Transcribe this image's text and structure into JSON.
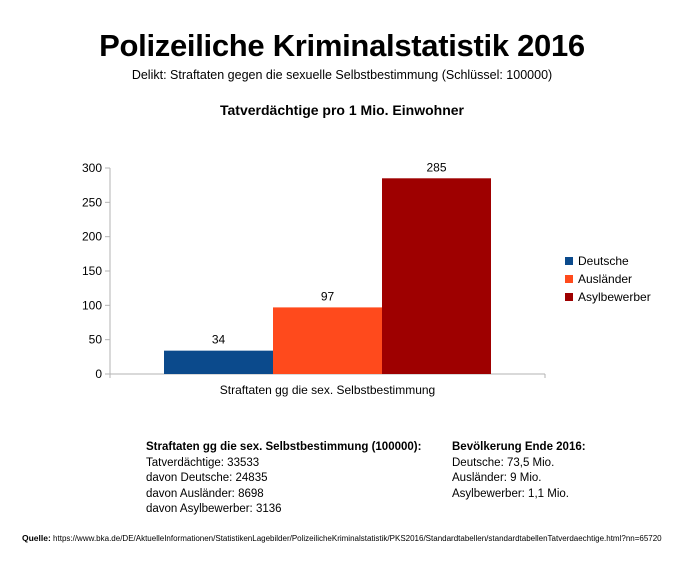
{
  "header": {
    "title": "Polizeiliche Kriminalstatistik 2016",
    "subtitle": "Delikt: Straftaten gegen die sexuelle Selbstbestimmung (Schlüssel: 100000)"
  },
  "chart_data": {
    "type": "bar",
    "title": "Tatverdächtige pro 1 Mio. Einwohner",
    "categories": [
      "Straftaten gg die sex. Selbstbestimmung"
    ],
    "series": [
      {
        "name": "Deutsche",
        "values": [
          34
        ],
        "color": "#0b4a8c"
      },
      {
        "name": "Ausländer",
        "values": [
          97
        ],
        "color": "#ff4a1c"
      },
      {
        "name": "Asylbewerber",
        "values": [
          285
        ],
        "color": "#9e0000"
      }
    ],
    "yticks": [
      0,
      50,
      100,
      150,
      200,
      250,
      300
    ],
    "ylim": [
      0,
      300
    ],
    "xlabel": "",
    "ylabel": "",
    "legend_position": "right"
  },
  "stats_left": {
    "heading": "Straftaten gg die sex. Selbstbestimmung (100000):",
    "lines": [
      "Tatverdächtige: 33533",
      "davon Deutsche: 24835",
      "davon Ausländer: 8698",
      "davon Asylbewerber: 3136"
    ]
  },
  "stats_right": {
    "heading": "Bevölkerung Ende 2016:",
    "lines": [
      "Deutsche: 73,5 Mio.",
      "Ausländer: 9 Mio.",
      "Asylbewerber: 1,1 Mio."
    ]
  },
  "source": {
    "label": "Quelle:",
    "url": "https://www.bka.de/DE/AktuelleInformationen/StatistikenLagebilder/PolizeilicheKriminalstatistik/PKS2016/Standardtabellen/standardtabellenTatverdaechtige.html?nn=65720"
  }
}
